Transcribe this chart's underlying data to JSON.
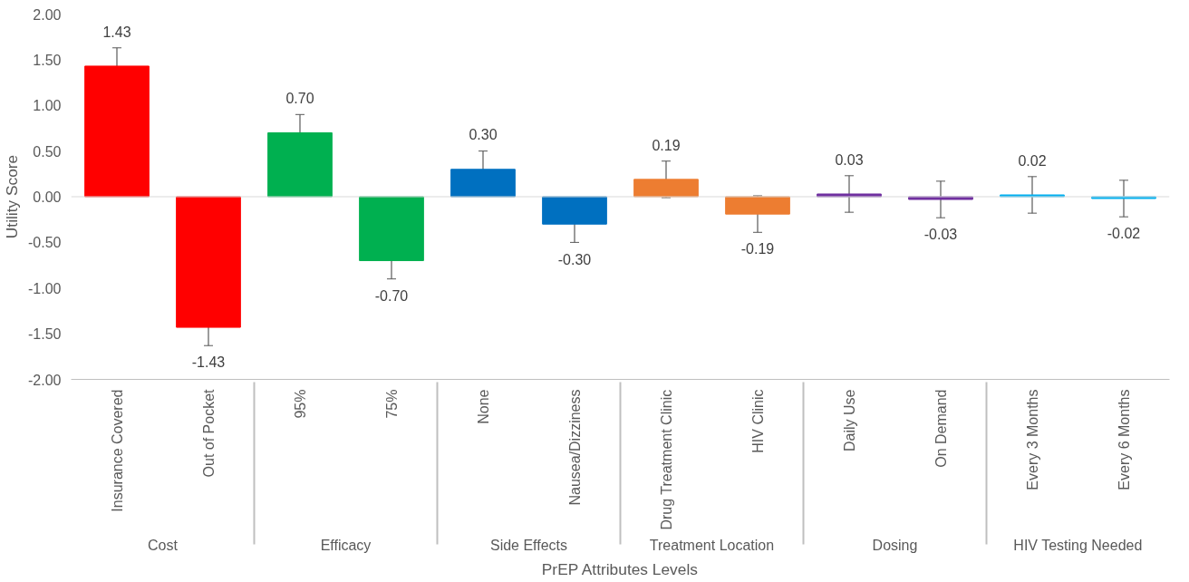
{
  "chart_data": {
    "type": "bar",
    "xlabel": "PrEP Attributes Levels",
    "categories": [
      "Insurance Covered",
      "Out of Pocket",
      "95%",
      "75%",
      "None",
      "Nausea/Dizziness",
      "Drug Treatment Clinic",
      "HIV Clinic",
      "Daily Use",
      "On Demand",
      "Every 3 Months",
      "Every 6 Months"
    ],
    "annotations": [
      "Cost",
      "Efficacy",
      "Side Effects",
      "Treatment Location",
      "Dosing",
      "HIV Testing Needed"
    ],
    "values": [
      1.43,
      -1.43,
      0.7,
      -0.7,
      0.3,
      -0.3,
      0.19,
      -0.19,
      0.03,
      -0.03,
      0.02,
      -0.02
    ],
    "value_labels": [
      "1.43",
      "-1.43",
      "0.70",
      "-0.70",
      "0.30",
      "-0.30",
      "0.19",
      "-0.19",
      "0.03",
      "-0.03",
      "0.02",
      "-0.02"
    ],
    "errors": [
      0.2,
      0.2,
      0.2,
      0.2,
      0.2,
      0.2,
      0.2,
      0.2,
      0.2,
      0.2,
      0.2,
      0.2
    ],
    "colors": [
      "#ff0000",
      "#ff0000",
      "#00b050",
      "#00b050",
      "#0070c0",
      "#0070c0",
      "#ed7d31",
      "#ed7d31",
      "#7030a0",
      "#7030a0",
      "#00b0f0",
      "#00b0f0"
    ],
    "ylim": [
      -2,
      2
    ],
    "yticks": [
      {
        "value": -2,
        "label": "-2.00"
      },
      {
        "value": -1.5,
        "label": "-1.50"
      },
      {
        "value": -1,
        "label": "-1.00"
      },
      {
        "value": -0.5,
        "label": "-0.50"
      },
      {
        "value": 0,
        "label": "0.00"
      },
      {
        "value": 0.5,
        "label": "0.50"
      },
      {
        "value": 1,
        "label": "1.00"
      },
      {
        "value": 1.5,
        "label": "1.50"
      },
      {
        "value": 2,
        "label": "2.00"
      }
    ],
    "ylabel": "Utility Score"
  }
}
